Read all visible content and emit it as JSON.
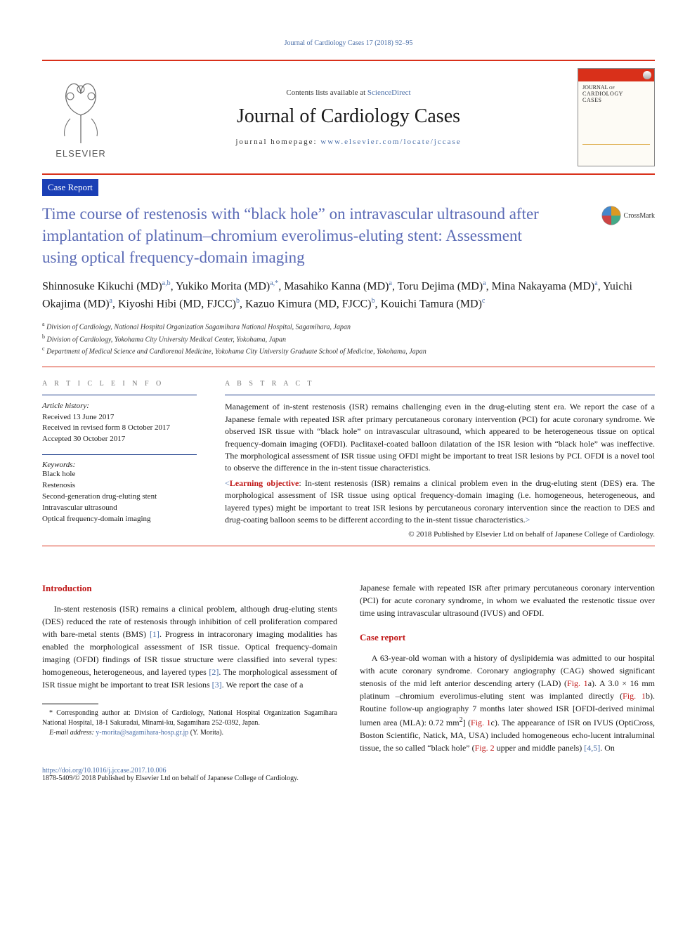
{
  "colors": {
    "red_rule": "#d9301a",
    "blue_bar": "#1a3fb5",
    "link_blue": "#4b6fa8",
    "title_blue": "#5b6bb6",
    "heading_red": "#c01818"
  },
  "top_citation": "Journal of Cardiology Cases 17 (2018) 92–95",
  "masthead": {
    "contents_line_prefix": "Contents lists available at ",
    "contents_link": "ScienceDirect",
    "journal_title": "Journal of Cardiology Cases",
    "homepage_prefix": "journal homepage: ",
    "homepage_url": "www.elsevier.com/locate/jccase",
    "publisher_logo_text": "ELSEVIER",
    "cover_text_line1": "JOURNAL of",
    "cover_text_line2": "CARDIOLOGY",
    "cover_text_line3": "CASES"
  },
  "article_type": "Case Report",
  "title": "Time course of restenosis with “black hole” on intravascular ultrasound after implantation of platinum–chromium everolimus-eluting stent: Assessment using optical frequency-domain imaging",
  "crossmark_label": "CrossMark",
  "authors_html": "Shinnosuke Kikuchi (MD)<sup>a,b</sup>, Yukiko Morita (MD)<sup>a,*</sup>, Masahiko Kanna (MD)<sup>a</sup>, Toru Dejima (MD)<sup>a</sup>, Mina Nakayama (MD)<sup>a</sup>, Yuichi Okajima (MD)<sup>a</sup>, Kiyoshi Hibi (MD, FJCC)<sup>b</sup>, Kazuo Kimura (MD, FJCC)<sup>b</sup>, Kouichi Tamura (MD)<sup>c</sup>",
  "affiliations": [
    {
      "key": "a",
      "text": "Division of Cardiology, National Hospital Organization Sagamihara National Hospital, Sagamihara, Japan"
    },
    {
      "key": "b",
      "text": "Division of Cardiology, Yokohama City University Medical Center, Yokohama, Japan"
    },
    {
      "key": "c",
      "text": "Department of Medical Science and Cardiorenal Medicine, Yokohama City University Graduate School of Medicine, Yokohama, Japan"
    }
  ],
  "article_info": {
    "heading": "A R T I C L E  I N F O",
    "history_label": "Article history:",
    "history": [
      "Received 13 June 2017",
      "Received in revised form 8 October 2017",
      "Accepted 30 October 2017"
    ],
    "keywords_label": "Keywords:",
    "keywords": [
      "Black hole",
      "Restenosis",
      "Second-generation drug-eluting stent",
      "Intravascular ultrasound",
      "Optical frequency-domain imaging"
    ]
  },
  "abstract": {
    "heading": "A B S T R A C T",
    "text": "Management of in-stent restenosis (ISR) remains challenging even in the drug-eluting stent era. We report the case of a Japanese female with repeated ISR after primary percutaneous coronary intervention (PCI) for acute coronary syndrome. We observed ISR tissue with “black hole” on intravascular ultrasound, which appeared to be heterogeneous tissue on optical frequency-domain imaging (OFDI). Paclitaxel-coated balloon dilatation of the ISR lesion with “black hole” was ineffective. The morphological assessment of ISR tissue using OFDI might be important to treat ISR lesions by PCI. OFDI is a novel tool to observe the difference in the in-stent tissue characteristics.",
    "learning_open": "<",
    "learning_label": "Learning objective",
    "learning_colon": ": ",
    "learning_text": "In-stent restenosis (ISR) remains a clinical problem even in the drug-eluting stent (DES) era. The morphological assessment of ISR tissue using optical frequency-domain imaging (i.e. homogeneous, heterogeneous, and layered types) might be important to treat ISR lesions by percutaneous coronary intervention since the reaction to DES and drug-coating balloon seems to be different according to the in-stent tissue characteristics.",
    "learning_close": ">",
    "copyright": "© 2018 Published by Elsevier Ltd on behalf of Japanese College of Cardiology."
  },
  "body": {
    "intro_heading": "Introduction",
    "intro_p1_parts": [
      {
        "t": "In-stent restenosis (ISR) remains a clinical problem, although drug-eluting stents (DES) reduced the rate of restenosis through inhibition of cell proliferation compared with bare-metal stents (BMS) "
      },
      {
        "t": "[1]",
        "cls": "ref"
      },
      {
        "t": ". Progress in intracoronary imaging modalities has enabled the morphological assessment of ISR tissue. Optical frequency-domain imaging (OFDI) findings of ISR tissue structure were classified into several types: homogeneous, heterogeneous, and layered types "
      },
      {
        "t": "[2]",
        "cls": "ref"
      },
      {
        "t": ". The morphological assessment of ISR tissue might be important to treat ISR lesions "
      },
      {
        "t": "[3]",
        "cls": "ref"
      },
      {
        "t": ". We report the case of a "
      }
    ],
    "col2_first": "Japanese female with repeated ISR after primary percutaneous coronary intervention (PCI) for acute coronary syndrome, in whom we evaluated the restenotic tissue over time using intravascular ultrasound (IVUS) and OFDI.",
    "case_heading": "Case report",
    "case_p1_parts": [
      {
        "t": "A 63-year-old woman with a history of dyslipidemia was admitted to our hospital with acute coronary syndrome. Coronary angiography (CAG) showed significant stenosis of the mid left anterior descending artery (LAD) ("
      },
      {
        "t": "Fig. 1",
        "cls": "figref"
      },
      {
        "t": "a). A 3.0 × 16 mm platinum –chromium everolimus-eluting stent was implanted directly ("
      },
      {
        "t": "Fig. 1",
        "cls": "figref"
      },
      {
        "t": "b). Routine follow-up angiography 7 months later showed ISR [OFDI-derived minimal lumen area (MLA): 0.72 mm"
      },
      {
        "t": "2",
        "sup": true
      },
      {
        "t": "] ("
      },
      {
        "t": "Fig. 1",
        "cls": "figref"
      },
      {
        "t": "c). The appearance of ISR on IVUS (OptiCross, Boston Scientific, Natick, MA, USA) included homogeneous echo-lucent intraluminal tissue, the so called “black hole” ("
      },
      {
        "t": "Fig. 2",
        "cls": "figref"
      },
      {
        "t": " upper and middle panels) "
      },
      {
        "t": "[4,5]",
        "cls": "ref"
      },
      {
        "t": ". On"
      }
    ]
  },
  "footnote": {
    "corr": "* Corresponding author at: Division of Cardiology, National Hospital Organization Sagamihara National Hospital, 18-1 Sakuradai, Minami-ku, Sagamihara 252-0392, Japan.",
    "email_label": "E-mail address: ",
    "email": "y-morita@sagamihara-hosp.gr.jp",
    "email_name": " (Y. Morita)."
  },
  "doi": {
    "url": "https://doi.org/10.1016/j.jccase.2017.10.006",
    "issn_line": "1878-5409/© 2018 Published by Elsevier Ltd on behalf of Japanese College of Cardiology."
  }
}
